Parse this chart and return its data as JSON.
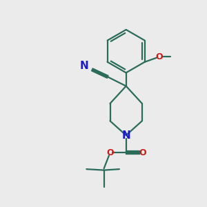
{
  "bg_color": "#ebebeb",
  "bond_color": "#2a6b5a",
  "N_color": "#1a1acc",
  "O_color": "#cc1a1a",
  "line_width": 1.6,
  "figsize": [
    3.0,
    3.0
  ],
  "dpi": 100,
  "xlim": [
    0,
    10
  ],
  "ylim": [
    0,
    10
  ]
}
